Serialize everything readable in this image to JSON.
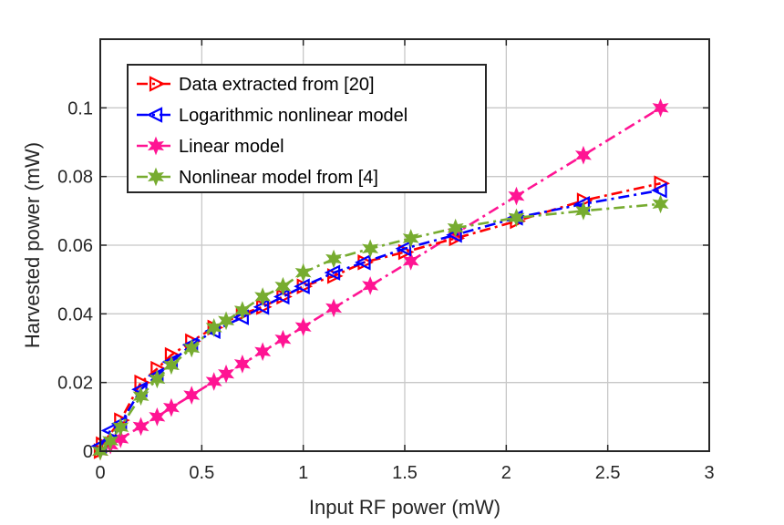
{
  "chart_data": {
    "type": "line",
    "title": "",
    "xlabel": "Input RF power (mW)",
    "ylabel": "Harvested power (mW)",
    "xlim": [
      0,
      3
    ],
    "ylim": [
      0,
      0.12
    ],
    "xticks": [
      0,
      0.5,
      1,
      1.5,
      2,
      2.5,
      3
    ],
    "xtick_labels": [
      "0",
      "0.5",
      "1",
      "1.5",
      "2",
      "2.5",
      "3"
    ],
    "yticks": [
      0,
      0.02,
      0.04,
      0.06,
      0.08,
      0.1
    ],
    "ytick_labels": [
      "0",
      "0.02",
      "0.04",
      "0.06",
      "0.08",
      "0.1"
    ],
    "grid": true,
    "legend_position": "top-left",
    "series": [
      {
        "name": "Data extracted from [20]",
        "color": "#ff0000",
        "linestyle": "dashdot",
        "marker": "triangle-right",
        "x": [
          0.0,
          0.01,
          0.1,
          0.2,
          0.28,
          0.35,
          0.45,
          0.56,
          0.7,
          0.8,
          0.9,
          1.0,
          1.15,
          1.3,
          1.5,
          1.75,
          2.05,
          2.38,
          2.76
        ],
        "y": [
          0.0,
          0.002,
          0.009,
          0.02,
          0.024,
          0.028,
          0.032,
          0.036,
          0.04,
          0.042,
          0.045,
          0.048,
          0.051,
          0.055,
          0.058,
          0.062,
          0.067,
          0.073,
          0.078
        ]
      },
      {
        "name": "Logarithmic nonlinear model",
        "color": "#0000ff",
        "linestyle": "dashdot",
        "marker": "triangle-left",
        "x": [
          0.0,
          0.05,
          0.1,
          0.2,
          0.28,
          0.35,
          0.45,
          0.56,
          0.7,
          0.8,
          0.9,
          1.0,
          1.15,
          1.3,
          1.5,
          1.75,
          2.05,
          2.38,
          2.76
        ],
        "y": [
          0.0015,
          0.006,
          0.008,
          0.018,
          0.022,
          0.026,
          0.031,
          0.035,
          0.039,
          0.042,
          0.045,
          0.048,
          0.052,
          0.055,
          0.059,
          0.063,
          0.068,
          0.072,
          0.076
        ]
      },
      {
        "name": "Linear model",
        "color": "#ff1493",
        "linestyle": "dashdot",
        "marker": "hexagram",
        "x": [
          0.0,
          0.05,
          0.1,
          0.2,
          0.28,
          0.35,
          0.45,
          0.56,
          0.62,
          0.7,
          0.8,
          0.9,
          1.0,
          1.15,
          1.33,
          1.53,
          1.75,
          2.05,
          2.38,
          2.76
        ],
        "y": [
          0.0,
          0.0018,
          0.0036,
          0.0072,
          0.01,
          0.0127,
          0.0163,
          0.0203,
          0.0225,
          0.0254,
          0.029,
          0.0326,
          0.0362,
          0.0417,
          0.0482,
          0.0554,
          0.0634,
          0.0743,
          0.0862,
          0.1
        ]
      },
      {
        "name": "Nonlinear model from [4]",
        "color": "#77ac30",
        "linestyle": "dashdot",
        "marker": "hexagram",
        "x": [
          0.0,
          0.05,
          0.1,
          0.2,
          0.28,
          0.35,
          0.45,
          0.56,
          0.62,
          0.7,
          0.8,
          0.9,
          1.0,
          1.15,
          1.33,
          1.53,
          1.75,
          2.05,
          2.38,
          2.76
        ],
        "y": [
          0.0,
          0.003,
          0.007,
          0.016,
          0.021,
          0.025,
          0.03,
          0.036,
          0.038,
          0.041,
          0.045,
          0.048,
          0.052,
          0.056,
          0.059,
          0.062,
          0.065,
          0.068,
          0.07,
          0.072
        ]
      }
    ]
  }
}
